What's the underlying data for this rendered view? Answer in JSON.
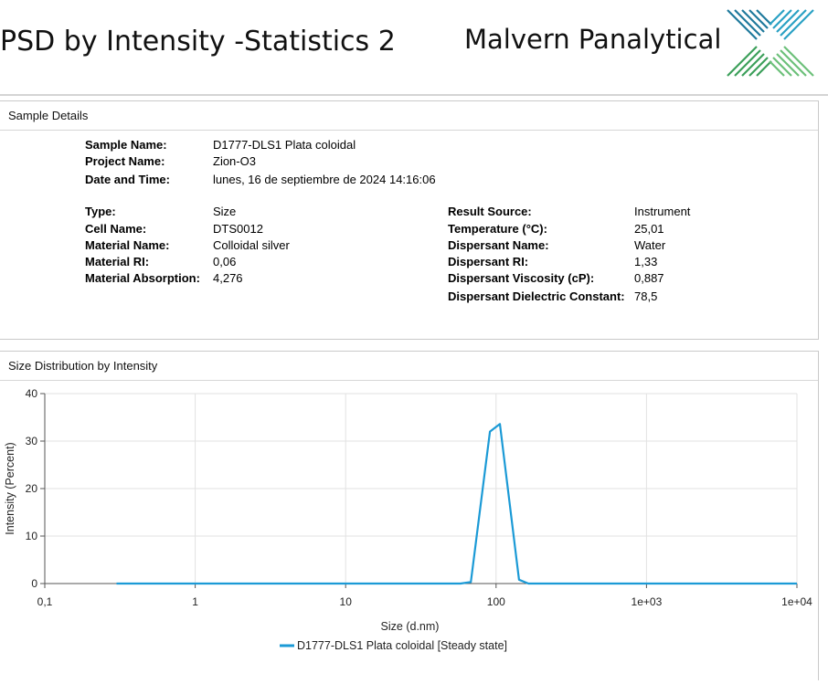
{
  "header": {
    "title": "PSD by Intensity -Statistics 2",
    "brand": "Malvern Panalytical",
    "logo_icon": "malvern-x-logo-icon",
    "logo_colors": [
      "#1f7a9c",
      "#2aa1c4",
      "#3c9f5a",
      "#6cc07a"
    ]
  },
  "sample_details": {
    "heading": "Sample Details",
    "sample_name_label": "Sample Name:",
    "sample_name": "D1777-DLS1 Plata coloidal",
    "project_name_label": "Project Name:",
    "project_name": "Zion-O3",
    "date_time_label": "Date and Time:",
    "date_time": "lunes, 16 de septiembre de 2024 14:16:06",
    "type_label": "Type:",
    "type": "Size",
    "cell_name_label": "Cell Name:",
    "cell_name": "DTS0012",
    "material_name_label": "Material Name:",
    "material_name": "Colloidal silver",
    "material_ri_label": "Material RI:",
    "material_ri": "0,06",
    "material_absorption_label": "Material Absorption:",
    "material_absorption": "4,276",
    "result_source_label": "Result Source:",
    "result_source": "Instrument",
    "temperature_label": "Temperature (°C):",
    "temperature": "25,01",
    "dispersant_name_label": "Dispersant Name:",
    "dispersant_name": "Water",
    "dispersant_ri_label": "Dispersant RI:",
    "dispersant_ri": "1,33",
    "dispersant_viscosity_label": "Dispersant Viscosity (cP):",
    "dispersant_viscosity": "0,887",
    "dispersant_dielectric_label": "Dispersant Dielectric Constant:",
    "dispersant_dielectric": "78,5"
  },
  "distribution": {
    "heading": "Size Distribution by Intensity"
  },
  "chart_data": {
    "type": "line",
    "title": "",
    "xlabel": "Size (d.nm)",
    "ylabel": "Intensity (Percent)",
    "xscale": "log",
    "xlim": [
      0.1,
      10000
    ],
    "ylim": [
      0,
      40
    ],
    "xticks": [
      0.1,
      1,
      10,
      100,
      1000,
      10000
    ],
    "xtick_labels": [
      "0,1",
      "1",
      "10",
      "100",
      "1e+03",
      "1e+04"
    ],
    "yticks": [
      0,
      10,
      20,
      30,
      40
    ],
    "ytick_labels": [
      "0",
      "10",
      "20",
      "30",
      "40"
    ],
    "grid": true,
    "legend_position": "bottom-center",
    "series": [
      {
        "name": "D1777-DLS1 Plata coloidal  [Steady state]",
        "color": "#1b9ad6",
        "x": [
          0.3,
          1,
          10,
          50,
          58,
          68,
          91,
          106,
          142,
          164,
          200,
          1000,
          10000
        ],
        "y": [
          0,
          0,
          0,
          0,
          0,
          0.3,
          32,
          33.6,
          0.8,
          0,
          0,
          0,
          0
        ]
      }
    ]
  }
}
